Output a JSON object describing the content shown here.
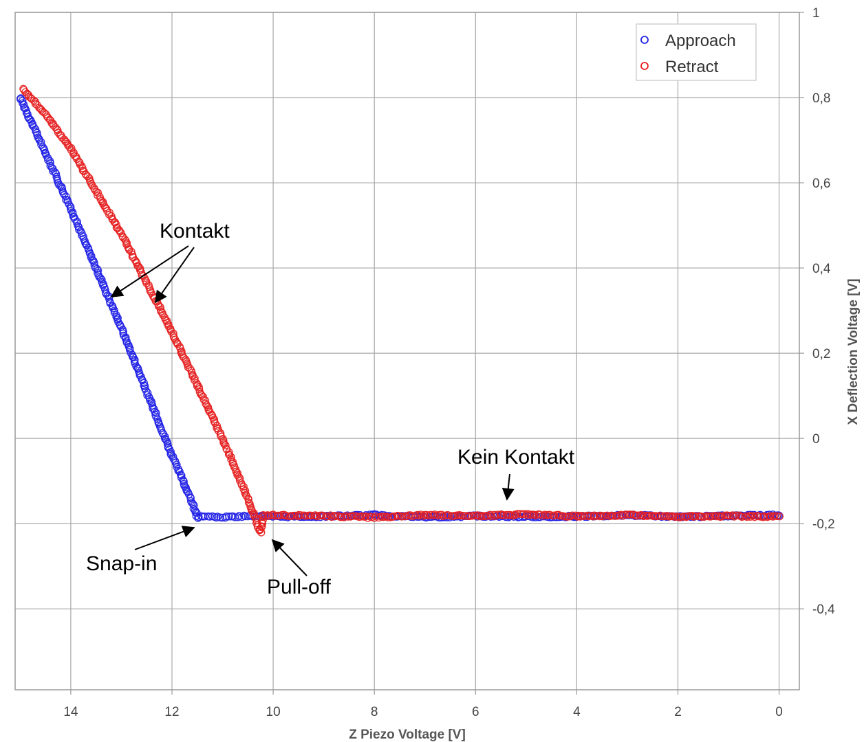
{
  "chart_data": {
    "type": "scatter",
    "title": "",
    "xlabel": "Z Piezo Voltage [V]",
    "ylabel": "X Deflection Voltage [V]",
    "xlim": [
      15.1,
      -0.4
    ],
    "ylim": [
      -0.59,
      1.0
    ],
    "x_reversed": true,
    "y_axis_side": "right",
    "grid": true,
    "legend_position": "top-right",
    "x_ticks": [
      14,
      12,
      10,
      8,
      6,
      4,
      2,
      0
    ],
    "x_tick_labels": [
      "14",
      "12",
      "10",
      "8",
      "6",
      "4",
      "2",
      "0"
    ],
    "y_ticks": [
      1,
      0.8,
      0.6,
      0.4,
      0.2,
      0,
      -0.2,
      -0.4
    ],
    "y_tick_labels": [
      "1",
      "0,8",
      "0,6",
      "0,4",
      "0,2",
      "0",
      "-0,2",
      "-0,4"
    ],
    "series": [
      {
        "name": "Approach",
        "color": "#1f1fe6",
        "marker": "open-circle",
        "x": [
          15.0,
          14.0,
          13.0,
          12.0,
          11.6,
          11.5,
          11.3,
          11.0,
          10.5,
          10.0,
          9.0,
          8.0,
          7.0,
          6.0,
          5.0,
          4.0,
          3.0,
          2.0,
          1.0,
          0.0
        ],
        "y": [
          0.8,
          0.54,
          0.26,
          -0.04,
          -0.15,
          -0.185,
          -0.183,
          -0.185,
          -0.182,
          -0.184,
          -0.183,
          -0.18,
          -0.185,
          -0.182,
          -0.184,
          -0.183,
          -0.18,
          -0.184,
          -0.182,
          -0.18
        ]
      },
      {
        "name": "Retract",
        "color": "#e61f1f",
        "marker": "open-circle",
        "x": [
          14.95,
          14.5,
          14.0,
          13.0,
          12.0,
          11.0,
          10.5,
          10.25,
          10.2,
          10.0,
          9.0,
          8.0,
          7.0,
          6.0,
          5.0,
          4.0,
          3.0,
          2.0,
          1.0,
          0.0
        ],
        "y": [
          0.82,
          0.76,
          0.68,
          0.48,
          0.25,
          0.0,
          -0.14,
          -0.22,
          -0.18,
          -0.18,
          -0.182,
          -0.185,
          -0.18,
          -0.182,
          -0.178,
          -0.183,
          -0.18,
          -0.184,
          -0.182,
          -0.184
        ]
      }
    ],
    "annotations": [
      {
        "text": "Kontakt"
      },
      {
        "text": "Kein Kontakt"
      },
      {
        "text": "Snap-in"
      },
      {
        "text": "Pull-off"
      }
    ]
  }
}
